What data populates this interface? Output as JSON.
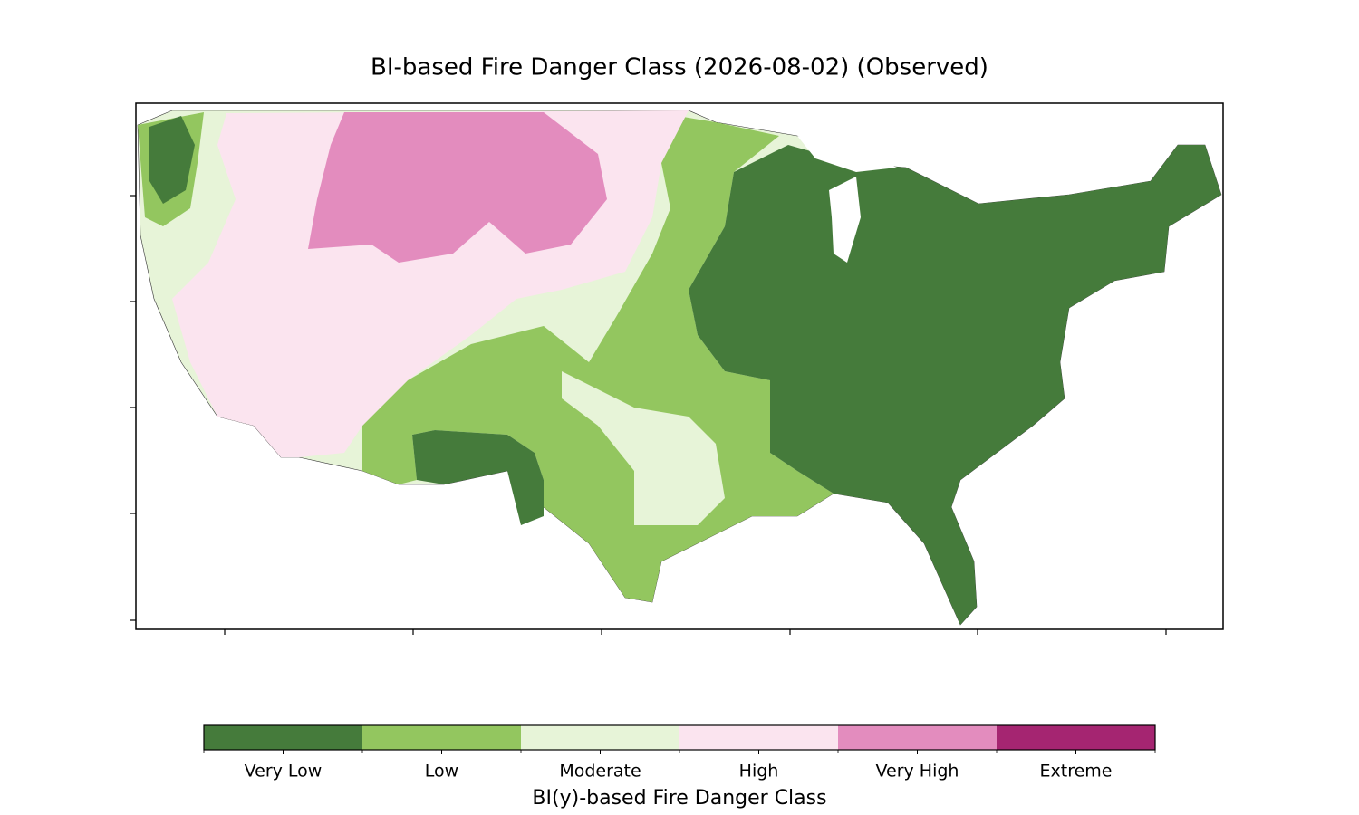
{
  "title": "BI-based Fire Danger Class (2026-08-02) (Observed)",
  "legend": {
    "label": "BI(y)-based Fire Danger Class",
    "classes": [
      {
        "name": "Very Low",
        "color": "#457b3b"
      },
      {
        "name": "Low",
        "color": "#93c65f"
      },
      {
        "name": "Moderate",
        "color": "#e7f4d8"
      },
      {
        "name": "High",
        "color": "#fbe4ef"
      },
      {
        "name": "Very High",
        "color": "#e38cbe"
      },
      {
        "name": "Extreme",
        "color": "#a52571"
      }
    ]
  }
}
